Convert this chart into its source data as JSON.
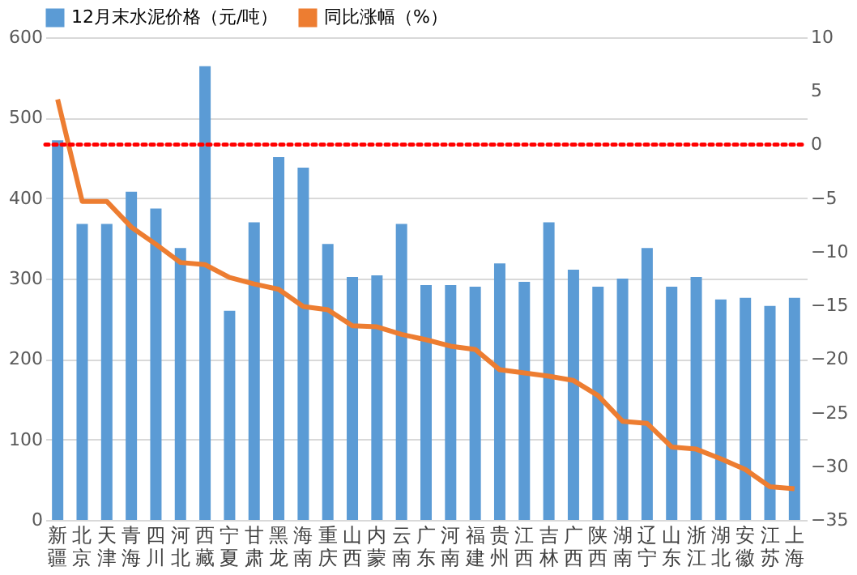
{
  "chart_data": {
    "type": "bar",
    "categories": [
      "新疆",
      "北京",
      "天津",
      "青海",
      "四川",
      "河北",
      "西藏",
      "宁夏",
      "甘肃",
      "黑龙",
      "海南",
      "重庆",
      "山西",
      "内蒙",
      "云南",
      "广东",
      "河南",
      "福建",
      "贵州",
      "江西",
      "吉林",
      "广西",
      "陕西",
      "湖南",
      "辽宁",
      "山东",
      "浙江",
      "湖北",
      "安徽",
      "江苏",
      "上海"
    ],
    "series": [
      {
        "name": "12月末水泥价格（元/吨）",
        "color": "#5b9bd5",
        "values": [
          472,
          368,
          368,
          408,
          387,
          338,
          564,
          260,
          370,
          451,
          438,
          343,
          302,
          304,
          368,
          292,
          292,
          290,
          319,
          296,
          370,
          311,
          290,
          300,
          338,
          290,
          302,
          274,
          276,
          266,
          276
        ]
      },
      {
        "name": "同比涨幅（%）",
        "color": "#ed7d31",
        "type": "line",
        "axis": "y2",
        "values": [
          4.2,
          -5.3,
          -5.3,
          -7.7,
          -9.3,
          -11,
          -11.2,
          -12.4,
          -13,
          -13.5,
          -15.1,
          -15.4,
          -16.9,
          -17,
          -17.7,
          -18.2,
          -18.8,
          -19.1,
          -21,
          -21.3,
          -21.6,
          -22,
          -23.4,
          -25.8,
          -26,
          -28.2,
          -28.4,
          -29.3,
          -30.3,
          -31.9,
          -32.1
        ]
      }
    ],
    "ylim": [
      0,
      600
    ],
    "yticks": [
      0,
      100,
      200,
      300,
      400,
      500,
      600
    ],
    "y2lim": [
      -35,
      10
    ],
    "y2ticks": [
      -35,
      -30,
      -25,
      -20,
      -15,
      -10,
      -5,
      0,
      5,
      10
    ],
    "ref_lines": [
      {
        "axis": "y2",
        "value": 0,
        "color": "#ff0000",
        "line_style": "dotted"
      }
    ],
    "grid": "y",
    "legend": "top"
  }
}
